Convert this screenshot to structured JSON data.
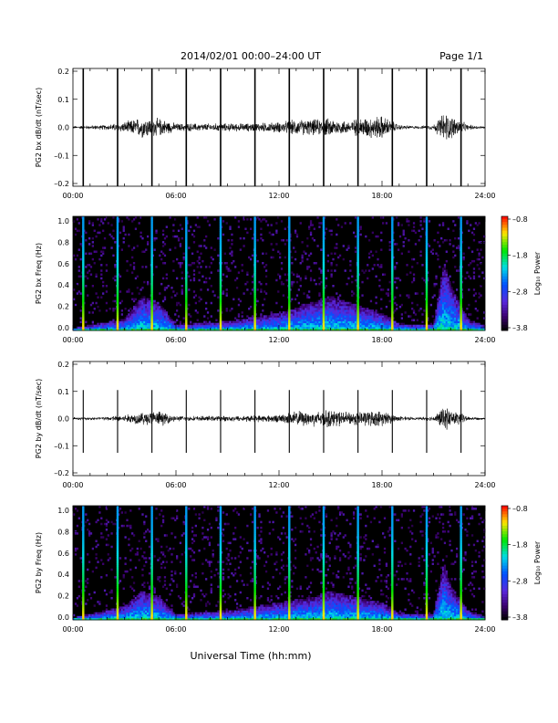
{
  "header": {
    "title": "2014/02/01   00:00–24:00 UT",
    "page": "Page 1/1"
  },
  "xlabel": "Universal Time (hh:mm)",
  "chart_data": [
    {
      "type": "line",
      "ylabel": "PG2 bx dB/dt (nT/sec)",
      "xlim": [
        "00:00",
        "24:00"
      ],
      "xticks": [
        "00:00",
        "06:00",
        "12:00",
        "18:00",
        "24:00"
      ],
      "ylim": [
        -0.2,
        0.2
      ],
      "yticks": [
        "–0.2",
        "–0.1",
        "0.0",
        "0.1",
        "0.2"
      ],
      "spikes_hours": [
        0.6,
        2.6,
        4.6,
        6.6,
        8.6,
        10.6,
        12.6,
        14.6,
        16.6,
        18.6,
        20.6,
        22.6
      ],
      "envelope": {
        "hours": [
          0,
          2,
          3,
          4,
          5,
          6,
          8,
          10,
          12,
          13,
          14,
          15,
          16,
          17,
          18,
          19,
          20,
          21,
          21.6,
          22,
          22.5,
          23,
          24
        ],
        "amplitude": [
          0.005,
          0.01,
          0.02,
          0.04,
          0.035,
          0.015,
          0.015,
          0.015,
          0.02,
          0.03,
          0.03,
          0.035,
          0.025,
          0.04,
          0.045,
          0.01,
          0.005,
          0.01,
          0.06,
          0.045,
          0.03,
          0.01,
          0.005
        ]
      }
    },
    {
      "type": "heatmap",
      "ylabel": "PG2 bx Freq (Hz)",
      "xlim": [
        "00:00",
        "24:00"
      ],
      "xticks": [
        "00:00",
        "06:00",
        "12:00",
        "18:00",
        "24:00"
      ],
      "ylim": [
        0.0,
        1.0
      ],
      "yticks": [
        "0.0",
        "0.2",
        "0.4",
        "0.6",
        "0.8",
        "1.0"
      ],
      "colorbar": {
        "label": "Log₁₀ Power",
        "range": [
          -3.8,
          -0.8
        ],
        "ticks": [
          "–0.8",
          "–1.8",
          "–2.8",
          "–3.8"
        ]
      },
      "spikes_hours": [
        0.6,
        2.6,
        4.6,
        6.6,
        8.6,
        10.6,
        12.6,
        14.6,
        16.6,
        18.6,
        20.6,
        22.6
      ],
      "band_top_hz": {
        "hours": [
          0,
          3,
          4,
          5,
          6,
          9,
          12,
          14,
          15,
          16,
          18,
          19,
          21,
          21.6,
          22,
          23,
          24
        ],
        "freq": [
          0.02,
          0.1,
          0.3,
          0.25,
          0.05,
          0.08,
          0.15,
          0.25,
          0.3,
          0.25,
          0.15,
          0.06,
          0.05,
          0.6,
          0.4,
          0.1,
          0.04
        ]
      }
    },
    {
      "type": "line",
      "ylabel": "PG2 by dB/dt (nT/sec)",
      "xlim": [
        "00:00",
        "24:00"
      ],
      "xticks": [
        "00:00",
        "06:00",
        "12:00",
        "18:00",
        "24:00"
      ],
      "ylim": [
        -0.2,
        0.2
      ],
      "yticks": [
        "–0.2",
        "–0.1",
        "0.0",
        "0.1",
        "0.2"
      ],
      "spikes_hours": [
        0.6,
        2.6,
        4.6,
        6.6,
        8.6,
        10.6,
        12.6,
        14.6,
        16.6,
        18.6,
        20.6,
        22.6
      ],
      "envelope": {
        "hours": [
          0,
          2,
          3,
          4,
          5,
          6,
          8,
          10,
          12,
          13,
          14,
          15,
          16,
          17,
          18,
          19,
          20,
          21,
          21.6,
          22,
          22.5,
          23,
          24
        ],
        "amplitude": [
          0.005,
          0.008,
          0.015,
          0.025,
          0.03,
          0.01,
          0.01,
          0.012,
          0.015,
          0.03,
          0.03,
          0.035,
          0.025,
          0.03,
          0.03,
          0.01,
          0.005,
          0.01,
          0.045,
          0.035,
          0.025,
          0.008,
          0.004
        ]
      }
    },
    {
      "type": "heatmap",
      "ylabel": "PG2 by Freq (Hz)",
      "xlim": [
        "00:00",
        "24:00"
      ],
      "xticks": [
        "00:00",
        "06:00",
        "12:00",
        "18:00",
        "24:00"
      ],
      "ylim": [
        0.0,
        1.0
      ],
      "yticks": [
        "0.0",
        "0.2",
        "0.4",
        "0.6",
        "0.8",
        "1.0"
      ],
      "colorbar": {
        "label": "Log₁₀ Power",
        "range": [
          -3.8,
          -0.8
        ],
        "ticks": [
          "–0.8",
          "–1.8",
          "–2.8",
          "–3.8"
        ]
      },
      "spikes_hours": [
        0.6,
        2.6,
        4.6,
        6.6,
        8.6,
        10.6,
        12.6,
        14.6,
        16.6,
        18.6,
        20.6,
        22.6
      ],
      "band_top_hz": {
        "hours": [
          0,
          3,
          4,
          5,
          6,
          9,
          12,
          14,
          15,
          16,
          18,
          19,
          21,
          21.6,
          22,
          23,
          24
        ],
        "freq": [
          0.02,
          0.12,
          0.25,
          0.2,
          0.05,
          0.08,
          0.15,
          0.2,
          0.25,
          0.22,
          0.15,
          0.06,
          0.05,
          0.5,
          0.3,
          0.08,
          0.03
        ]
      }
    }
  ]
}
